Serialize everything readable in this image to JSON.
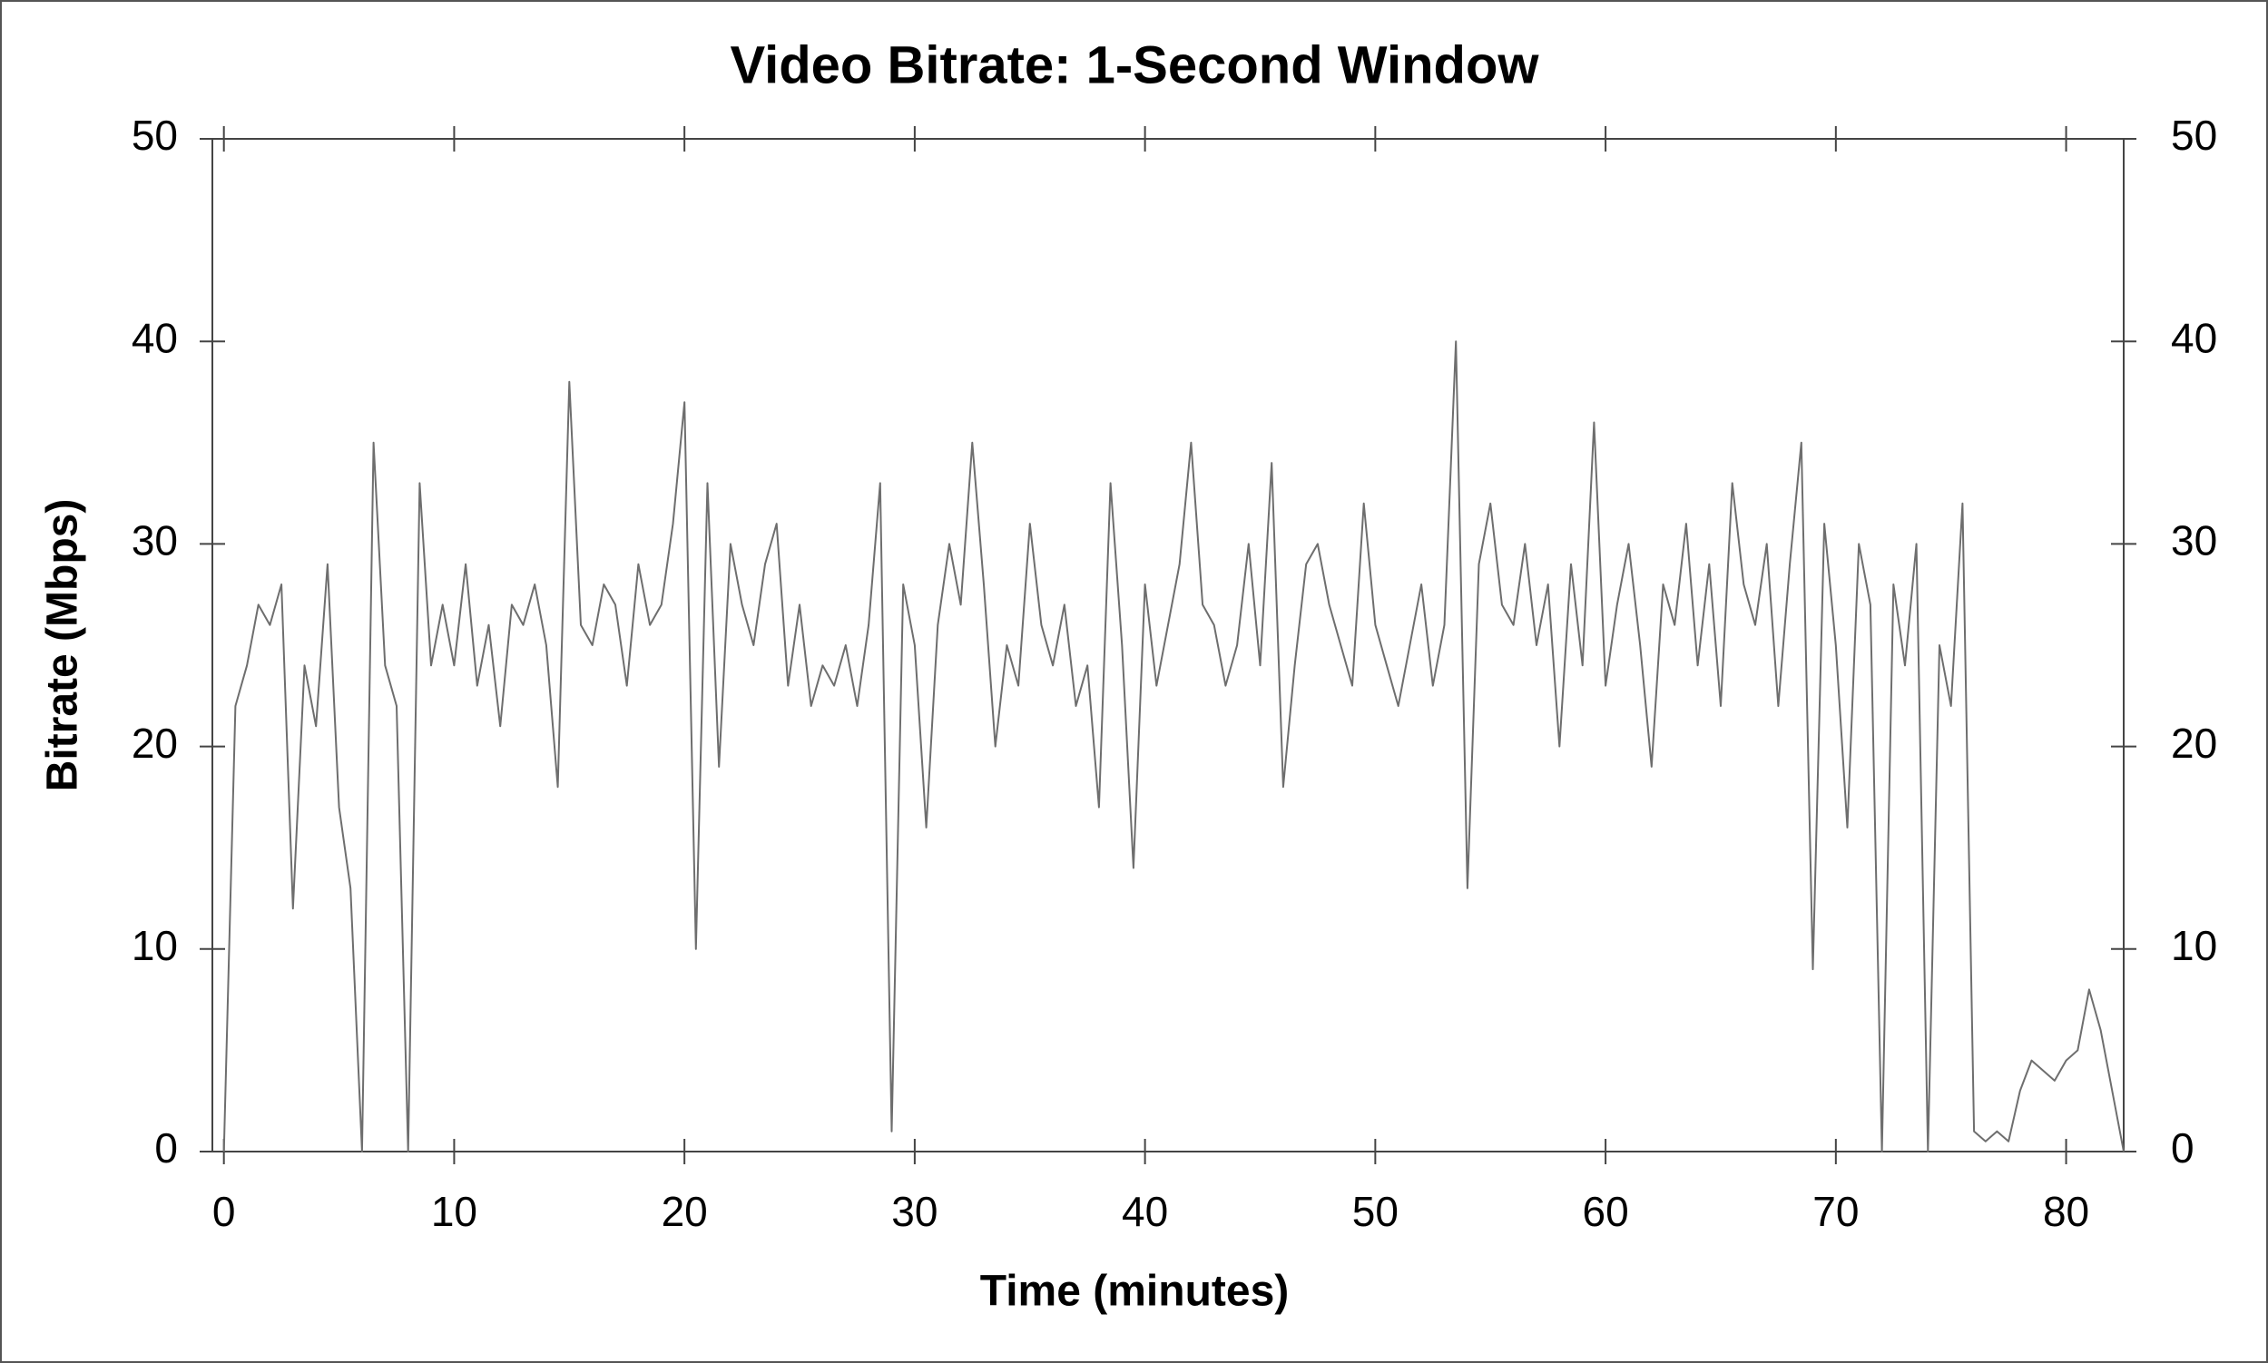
{
  "chart_data": {
    "type": "line",
    "title": "Video Bitrate: 1-Second Window",
    "xlabel": "Time (minutes)",
    "ylabel": "Bitrate (Mbps)",
    "color": "#6e6e6e",
    "x": [
      0,
      0.5,
      1,
      1.5,
      2,
      2.5,
      3,
      3.5,
      4,
      4.5,
      5,
      5.5,
      6,
      6.5,
      7,
      7.5,
      8,
      8.5,
      9,
      9.5,
      10,
      10.5,
      11,
      11.5,
      12,
      12.5,
      13,
      13.5,
      14,
      14.5,
      15,
      15.5,
      16,
      16.5,
      17,
      17.5,
      18,
      18.5,
      19,
      19.5,
      20,
      20.5,
      21,
      21.5,
      22,
      22.5,
      23,
      23.5,
      24,
      24.5,
      25,
      25.5,
      26,
      26.5,
      27,
      27.5,
      28,
      28.5,
      29,
      29.5,
      30,
      30.5,
      31,
      31.5,
      32,
      32.5,
      33,
      33.5,
      34,
      34.5,
      35,
      35.5,
      36,
      36.5,
      37,
      37.5,
      38,
      38.5,
      39,
      39.5,
      40,
      40.5,
      41,
      41.5,
      42,
      42.5,
      43,
      43.5,
      44,
      44.5,
      45,
      45.5,
      46,
      46.5,
      47,
      47.5,
      48,
      48.5,
      49,
      49.5,
      50,
      50.5,
      51,
      51.5,
      52,
      52.5,
      53,
      53.5,
      54,
      54.5,
      55,
      55.5,
      56,
      56.5,
      57,
      57.5,
      58,
      58.5,
      59,
      59.5,
      60,
      60.5,
      61,
      61.5,
      62,
      62.5,
      63,
      63.5,
      64,
      64.5,
      65,
      65.5,
      66,
      66.5,
      67,
      67.5,
      68,
      68.5,
      69,
      69.5,
      70,
      70.5,
      71,
      71.5,
      72,
      72.5,
      73,
      73.5,
      74,
      74.5,
      75,
      75.5,
      76,
      76.5,
      77,
      77.5,
      78,
      78.5,
      79,
      79.5,
      80,
      80.5,
      81,
      81.5,
      82,
      82.5
    ],
    "values": [
      0,
      22,
      24,
      27,
      26,
      28,
      12,
      24,
      21,
      29,
      17,
      13,
      0,
      35,
      24,
      22,
      0,
      33,
      24,
      27,
      24,
      29,
      23,
      26,
      21,
      27,
      26,
      28,
      25,
      18,
      38,
      26,
      25,
      28,
      27,
      23,
      29,
      26,
      27,
      31,
      37,
      10,
      33,
      19,
      30,
      27,
      25,
      29,
      31,
      23,
      27,
      22,
      24,
      23,
      25,
      22,
      26,
      33,
      1,
      28,
      25,
      16,
      26,
      30,
      27,
      35,
      28,
      20,
      25,
      23,
      31,
      26,
      24,
      27,
      22,
      24,
      17,
      33,
      25,
      14,
      28,
      23,
      26,
      29,
      35,
      27,
      26,
      23,
      25,
      30,
      24,
      34,
      18,
      24,
      29,
      30,
      27,
      25,
      23,
      32,
      26,
      24,
      22,
      25,
      28,
      23,
      26,
      40,
      13,
      29,
      32,
      27,
      26,
      30,
      25,
      28,
      20,
      29,
      24,
      36,
      23,
      27,
      30,
      25,
      19,
      28,
      26,
      31,
      24,
      29,
      22,
      33,
      28,
      26,
      30,
      22,
      29,
      35,
      9,
      31,
      25,
      16,
      30,
      27,
      0,
      28,
      24,
      30,
      0,
      25,
      22,
      32,
      1,
      0.5,
      1,
      0.5,
      3,
      4.5,
      4,
      3.5,
      4.5,
      5,
      8,
      6,
      3,
      0
    ],
    "xlim": [
      -0.5,
      82.5
    ],
    "xticks": [
      0,
      10,
      20,
      30,
      40,
      50,
      60,
      70,
      80
    ],
    "ylim": [
      0,
      50
    ],
    "yticks": [
      0,
      10,
      20,
      30,
      40,
      50
    ],
    "y2lim": [
      0,
      50
    ],
    "y2ticks": [
      0,
      10,
      20,
      30,
      40,
      50
    ]
  }
}
